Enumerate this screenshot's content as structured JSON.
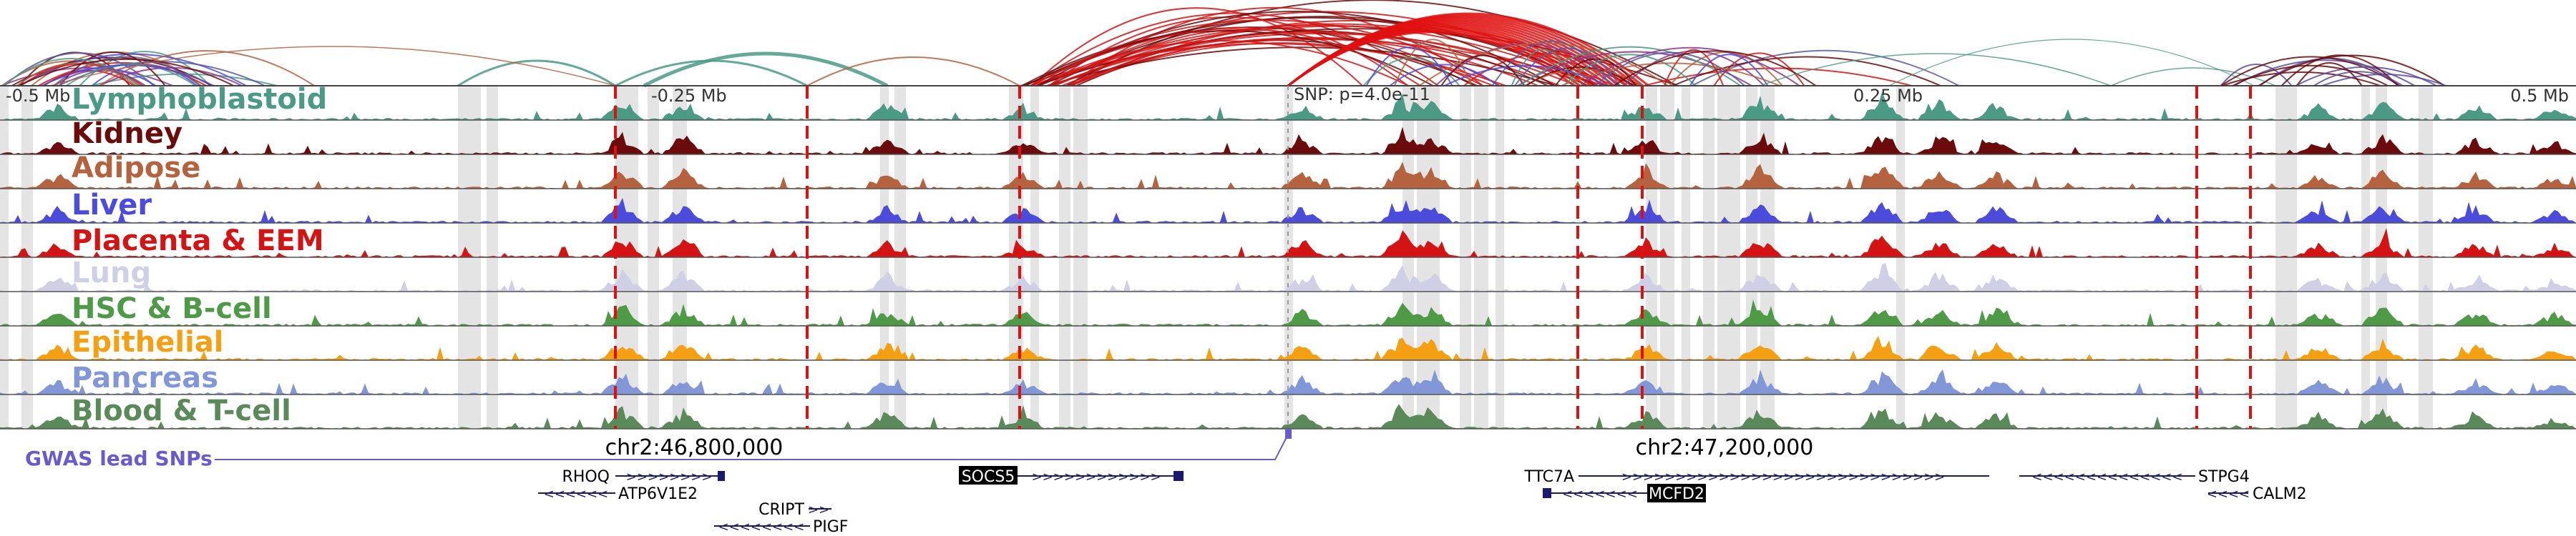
{
  "axis": {
    "left_label": "-0.5 Mb",
    "mid_left_label": "-0.25 Mb",
    "snp_label": "SNP: p=4.0e-11",
    "mid_right_label": "0.25 Mb",
    "right_label": "0.5 Mb"
  },
  "tracks": [
    {
      "name": "Lymphoblastoid",
      "color": "#4a9a86"
    },
    {
      "name": "Kidney",
      "color": "#6b0b0b"
    },
    {
      "name": "Adipose",
      "color": "#b5623e"
    },
    {
      "name": "Liver",
      "color": "#4b4bdc"
    },
    {
      "name": "Placenta & EEM",
      "color": "#d41414"
    },
    {
      "name": "Lung",
      "color": "#cfcfe6"
    },
    {
      "name": "HSC & B-cell",
      "color": "#4e9a47"
    },
    {
      "name": "Epithelial",
      "color": "#f5a012"
    },
    {
      "name": "Pancreas",
      "color": "#8297d8"
    },
    {
      "name": "Blood & T-cell",
      "color": "#5a8a5a"
    }
  ],
  "gwas": {
    "label": "GWAS lead SNPs",
    "color": "#6a5acd"
  },
  "coordinates": {
    "left": "chr2:46,800,000",
    "right": "chr2:47,200,000"
  },
  "genes": [
    {
      "name": "RHOQ",
      "highlight": false
    },
    {
      "name": "ATP6V1E2",
      "highlight": false
    },
    {
      "name": "CRIPT",
      "highlight": false
    },
    {
      "name": "PIGF",
      "highlight": false
    },
    {
      "name": "SOCS5",
      "highlight": true
    },
    {
      "name": "TTC7A",
      "highlight": false
    },
    {
      "name": "MCFD2",
      "highlight": true
    },
    {
      "name": "STPG4",
      "highlight": false
    },
    {
      "name": "CALM2",
      "highlight": false
    }
  ]
}
